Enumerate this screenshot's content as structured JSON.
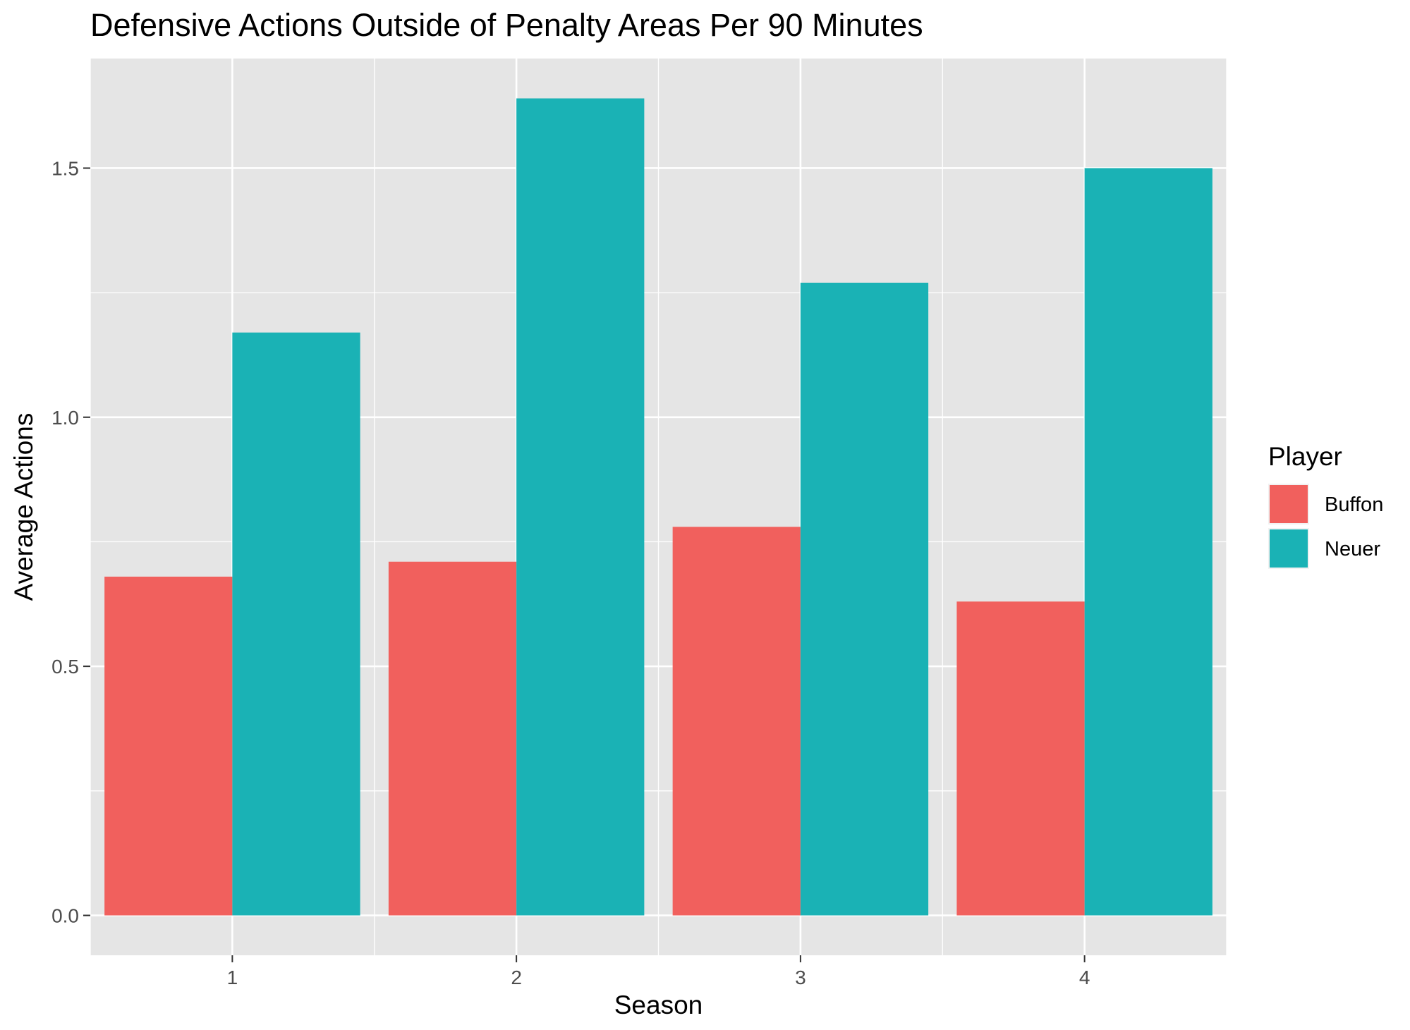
{
  "chart_data": {
    "type": "bar",
    "title": "Defensive Actions Outside of Penalty Areas Per 90 Minutes",
    "xlabel": "Season",
    "ylabel": "Average Actions",
    "categories": [
      "1",
      "2",
      "3",
      "4"
    ],
    "series": [
      {
        "name": "Buffon",
        "color": "#F1605D",
        "values": [
          0.68,
          0.71,
          0.78,
          0.63
        ]
      },
      {
        "name": "Neuer",
        "color": "#1AB2B5",
        "values": [
          1.17,
          1.64,
          1.27,
          1.5
        ]
      }
    ],
    "ylim": [
      -0.08,
      1.72
    ],
    "yticks": [
      0.0,
      0.5,
      1.0,
      1.5
    ],
    "ytick_labels": [
      "0.0",
      "0.5",
      "1.0",
      "1.5"
    ],
    "grid": true,
    "legend": {
      "title": "Player",
      "placement": "right"
    },
    "panel_color": "#E5E5E5",
    "grid_color": "#FFFFFF"
  }
}
